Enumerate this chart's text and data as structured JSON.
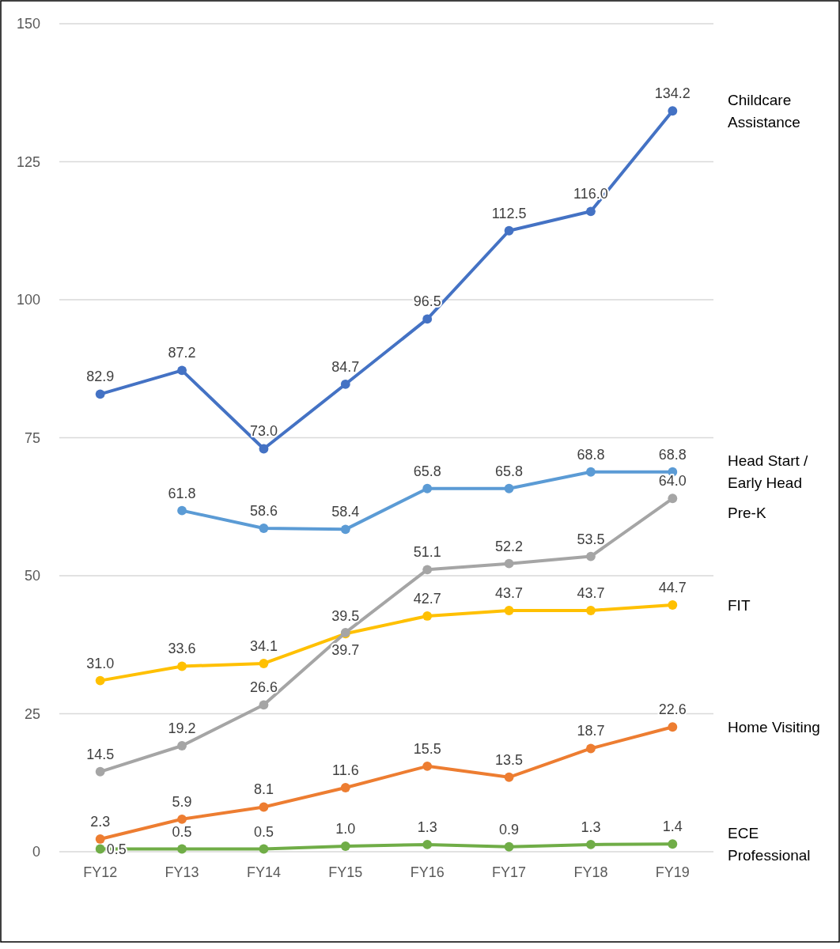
{
  "chart_data": {
    "type": "line",
    "categories": [
      "FY12",
      "FY13",
      "FY14",
      "FY15",
      "FY16",
      "FY17",
      "FY18",
      "FY19"
    ],
    "series": [
      {
        "name": "Childcare Assistance",
        "color": "#4472c4",
        "values": [
          82.9,
          87.2,
          73.0,
          84.7,
          96.5,
          112.5,
          116.0,
          134.2
        ],
        "value_labels": [
          "82.9",
          "87.2",
          "73.0",
          "84.7",
          "96.5",
          "112.5",
          "116.0",
          "134.2"
        ]
      },
      {
        "name": "Head Start / Early Head",
        "color": "#5b9bd5",
        "values": [
          null,
          61.8,
          58.6,
          58.4,
          65.8,
          65.8,
          68.8,
          68.8
        ],
        "value_labels": [
          null,
          "61.8",
          "58.6",
          "58.4",
          "65.8",
          "65.8",
          "68.8",
          "68.8"
        ]
      },
      {
        "name": "FIT",
        "color": "#ffc000",
        "values": [
          31.0,
          33.6,
          34.1,
          39.5,
          42.7,
          43.7,
          43.7,
          44.7
        ],
        "value_labels": [
          "31.0",
          "33.6",
          "34.1",
          "39.5",
          "42.7",
          "43.7",
          "43.7",
          "44.7"
        ]
      },
      {
        "name": "Pre-K",
        "color": "#a5a5a5",
        "values": [
          14.5,
          19.2,
          26.6,
          39.7,
          51.1,
          52.2,
          53.5,
          64.0
        ],
        "value_labels": [
          "14.5",
          "19.2",
          "26.6",
          "39.7",
          "51.1",
          "52.2",
          "53.5",
          "64.0"
        ]
      },
      {
        "name": "Home Visiting",
        "color": "#ed7d31",
        "values": [
          2.3,
          5.9,
          8.1,
          11.6,
          15.5,
          13.5,
          18.7,
          22.6
        ],
        "value_labels": [
          "2.3",
          "5.9",
          "8.1",
          "11.6",
          "15.5",
          "13.5",
          "18.7",
          "22.6"
        ]
      },
      {
        "name": "ECE Professional",
        "color": "#70ad47",
        "values": [
          0.5,
          0.5,
          0.5,
          1.0,
          1.3,
          0.9,
          1.3,
          1.4
        ],
        "value_labels": [
          "0.5",
          "0.5",
          "0.5",
          "1.0",
          "1.3",
          "0.9",
          "1.3",
          "1.4"
        ]
      }
    ],
    "ylim": [
      0,
      150
    ],
    "yticks": [
      0,
      25,
      50,
      75,
      100,
      125,
      150
    ],
    "grid": "y",
    "marker": "circle"
  }
}
